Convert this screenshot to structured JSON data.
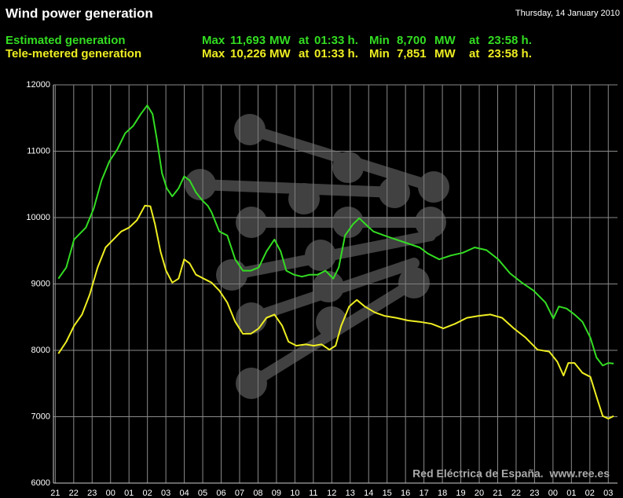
{
  "chart_data": {
    "type": "line",
    "title": "Wind power generation",
    "subtitle": "Thursday, 14 January 2010",
    "watermark": "Red Eléctrica de España.  www.ree.es",
    "background": "#000000",
    "grid": true,
    "ylim": [
      6000,
      12000
    ],
    "yticks": [
      6000,
      7000,
      8000,
      9000,
      10000,
      11000,
      12000
    ],
    "xlim": [
      -0.1,
      30.5
    ],
    "xticks": [
      {
        "value": 0,
        "label": "21"
      },
      {
        "value": 1,
        "label": "22"
      },
      {
        "value": 2,
        "label": "23"
      },
      {
        "value": 3,
        "label": "00"
      },
      {
        "value": 4,
        "label": "01"
      },
      {
        "value": 5,
        "label": "02"
      },
      {
        "value": 6,
        "label": "03"
      },
      {
        "value": 7,
        "label": "04"
      },
      {
        "value": 8,
        "label": "05"
      },
      {
        "value": 9,
        "label": "06"
      },
      {
        "value": 10,
        "label": "07"
      },
      {
        "value": 11,
        "label": "08"
      },
      {
        "value": 12,
        "label": "09"
      },
      {
        "value": 13,
        "label": "10"
      },
      {
        "value": 14,
        "label": "11"
      },
      {
        "value": 15,
        "label": "12"
      },
      {
        "value": 16,
        "label": "13"
      },
      {
        "value": 17,
        "label": "14"
      },
      {
        "value": 18,
        "label": "15"
      },
      {
        "value": 19,
        "label": "16"
      },
      {
        "value": 20,
        "label": "17"
      },
      {
        "value": 21,
        "label": "18"
      },
      {
        "value": 22,
        "label": "19"
      },
      {
        "value": 23,
        "label": "20"
      },
      {
        "value": 24,
        "label": "21"
      },
      {
        "value": 25,
        "label": "22"
      },
      {
        "value": 26,
        "label": "23"
      },
      {
        "value": 27,
        "label": "00"
      },
      {
        "value": 28,
        "label": "01"
      },
      {
        "value": 29,
        "label": "02"
      },
      {
        "value": 30,
        "label": "03"
      }
    ],
    "series": [
      {
        "name": "Estimated generation",
        "color": "#33dd22",
        "summary": [
          "Max",
          "11,693",
          "MW",
          "at",
          "01:33 h.",
          "Min",
          "8,700",
          "MW",
          "at",
          "23:58 h."
        ],
        "x": [
          0.17,
          0.6,
          1.02,
          1.66,
          2.09,
          2.51,
          2.94,
          3.37,
          3.79,
          4.22,
          4.64,
          4.99,
          5.28,
          5.5,
          5.79,
          6.05,
          6.35,
          6.69,
          6.99,
          7.29,
          7.63,
          7.97,
          8.27,
          8.48,
          8.9,
          9.33,
          9.76,
          10.18,
          10.61,
          11.04,
          11.46,
          11.89,
          12.23,
          12.53,
          12.95,
          13.38,
          13.8,
          14.23,
          14.66,
          15.08,
          15.38,
          15.72,
          16.15,
          16.49,
          16.83,
          17.26,
          17.85,
          18.49,
          19.13,
          19.77,
          20.2,
          20.83,
          21.47,
          22.11,
          22.75,
          23.39,
          24.03,
          24.67,
          25.31,
          25.95,
          26.59,
          27.02,
          27.32,
          27.74,
          28.17,
          28.6,
          29.03,
          29.36,
          29.7,
          30.0,
          30.29
        ],
        "values": [
          9080,
          9250,
          9670,
          9850,
          10140,
          10560,
          10850,
          11030,
          11270,
          11380,
          11560,
          11690,
          11560,
          11200,
          10670,
          10440,
          10320,
          10440,
          10620,
          10560,
          10380,
          10260,
          10180,
          10080,
          9790,
          9730,
          9370,
          9200,
          9200,
          9250,
          9490,
          9670,
          9490,
          9200,
          9140,
          9110,
          9140,
          9140,
          9200,
          9080,
          9250,
          9730,
          9900,
          9990,
          9900,
          9790,
          9730,
          9670,
          9610,
          9550,
          9460,
          9370,
          9430,
          9470,
          9550,
          9510,
          9370,
          9160,
          9020,
          8900,
          8720,
          8480,
          8660,
          8630,
          8540,
          8430,
          8190,
          7890,
          7770,
          7810,
          7800
        ]
      },
      {
        "name": "Tele-metered generation",
        "color": "#eeee22",
        "summary": [
          "Max",
          "10,226",
          "MW",
          "at",
          "01:33 h.",
          "Min",
          "7,851",
          "MW",
          "at",
          "23:58 h."
        ],
        "x": [
          0.17,
          0.6,
          1.02,
          1.45,
          1.87,
          2.3,
          2.73,
          3.15,
          3.58,
          4.01,
          4.43,
          4.86,
          5.16,
          5.41,
          5.71,
          6.01,
          6.35,
          6.69,
          6.99,
          7.29,
          7.63,
          8.05,
          8.48,
          8.9,
          9.33,
          9.76,
          10.18,
          10.61,
          11.04,
          11.46,
          11.89,
          12.31,
          12.65,
          13.08,
          13.59,
          14.02,
          14.44,
          14.87,
          15.21,
          15.51,
          15.94,
          16.36,
          16.79,
          17.34,
          17.85,
          18.49,
          19.13,
          19.77,
          20.41,
          21.05,
          21.69,
          22.33,
          22.97,
          23.6,
          24.24,
          24.88,
          25.52,
          26.16,
          26.8,
          27.23,
          27.57,
          27.83,
          28.17,
          28.6,
          29.03,
          29.36,
          29.7,
          30.0,
          30.29
        ],
        "values": [
          7950,
          8130,
          8370,
          8540,
          8840,
          9250,
          9550,
          9670,
          9790,
          9850,
          9960,
          10180,
          10170,
          9900,
          9490,
          9200,
          9020,
          9080,
          9370,
          9310,
          9140,
          9080,
          9020,
          8900,
          8720,
          8430,
          8250,
          8250,
          8330,
          8490,
          8540,
          8370,
          8130,
          8070,
          8090,
          8070,
          8090,
          8010,
          8070,
          8370,
          8660,
          8760,
          8660,
          8570,
          8520,
          8490,
          8450,
          8430,
          8400,
          8330,
          8400,
          8490,
          8520,
          8540,
          8490,
          8330,
          8190,
          8010,
          7980,
          7830,
          7620,
          7810,
          7810,
          7660,
          7600,
          7300,
          7010,
          6970,
          7010
        ]
      }
    ]
  }
}
